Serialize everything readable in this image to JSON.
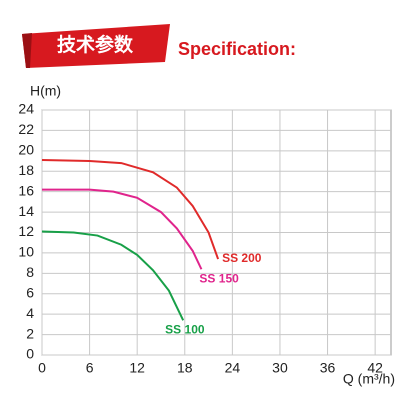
{
  "header": {
    "title_cn": "技术参数",
    "title_en": "Specification:"
  },
  "chart_data": {
    "type": "line",
    "y_label": "H(m)",
    "x_label": "Q (m³/h)",
    "xlim": [
      0,
      44
    ],
    "xticks": [
      0,
      6,
      12,
      18,
      24,
      30,
      36,
      42
    ],
    "ylim": [
      0,
      24
    ],
    "yticks": [
      0,
      2,
      4,
      6,
      8,
      10,
      12,
      14,
      16,
      18,
      20,
      22,
      24
    ],
    "grid": true,
    "series": [
      {
        "name": "SS 200",
        "color": "#e02a2a",
        "x": [
          0,
          6,
          10,
          14,
          17,
          19,
          21,
          22.2
        ],
        "values": [
          19.1,
          19.0,
          18.8,
          17.9,
          16.4,
          14.6,
          12.0,
          9.4
        ]
      },
      {
        "name": "SS 150",
        "color": "#e0248c",
        "x": [
          0,
          6,
          9,
          12,
          15,
          17,
          19,
          20.1
        ],
        "values": [
          16.2,
          16.2,
          16.0,
          15.4,
          14.0,
          12.4,
          10.2,
          8.4
        ]
      },
      {
        "name": "SS 100",
        "color": "#18a048",
        "x": [
          0,
          4,
          7,
          10,
          12,
          14,
          16,
          17.8
        ],
        "values": [
          12.1,
          12.0,
          11.7,
          10.8,
          9.8,
          8.3,
          6.3,
          3.4
        ]
      }
    ]
  }
}
